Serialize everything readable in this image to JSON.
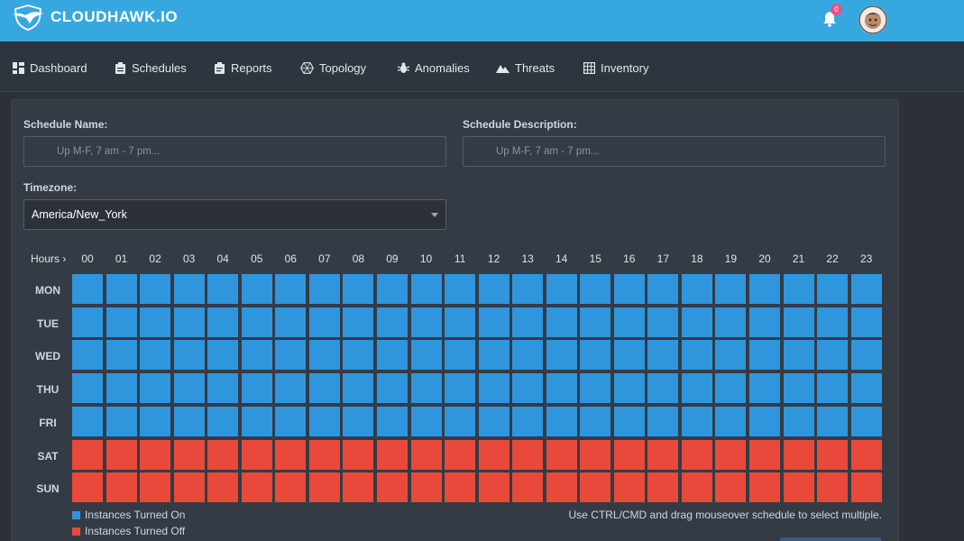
{
  "header": {
    "brand": "CLOUDHAWK.IO",
    "notification_count": "0",
    "logo_icon": "hawk-logo-icon",
    "bell_icon": "bell-icon"
  },
  "nav": {
    "items": [
      {
        "label": "Dashboard",
        "icon": "dashboard-icon"
      },
      {
        "label": "Schedules",
        "icon": "clipboard-icon"
      },
      {
        "label": "Reports",
        "icon": "report-icon"
      },
      {
        "label": "Topology",
        "icon": "topology-icon"
      },
      {
        "label": "Anomalies",
        "icon": "bug-icon"
      },
      {
        "label": "Threats",
        "icon": "mountain-icon"
      },
      {
        "label": "Inventory",
        "icon": "grid-icon"
      }
    ]
  },
  "form": {
    "schedule_name_label": "Schedule Name:",
    "schedule_name_placeholder": "Up M-F, 7 am - 7 pm...",
    "schedule_description_label": "Schedule Description:",
    "schedule_description_placeholder": "Up M-F, 7 am - 7 pm...",
    "timezone_label": "Timezone:",
    "timezone_value": "America/New_York"
  },
  "schedule": {
    "hours_label": "Hours ›",
    "hours": [
      "00",
      "01",
      "02",
      "03",
      "04",
      "05",
      "06",
      "07",
      "08",
      "09",
      "10",
      "11",
      "12",
      "13",
      "14",
      "15",
      "16",
      "17",
      "18",
      "19",
      "20",
      "21",
      "22",
      "23"
    ],
    "days": [
      {
        "label": "MON",
        "state": "on"
      },
      {
        "label": "TUE",
        "state": "on"
      },
      {
        "label": "WED",
        "state": "on"
      },
      {
        "label": "THU",
        "state": "on"
      },
      {
        "label": "FRI",
        "state": "on"
      },
      {
        "label": "SAT",
        "state": "off"
      },
      {
        "label": "SUN",
        "state": "off"
      }
    ],
    "legend_on": "Instances Turned On",
    "legend_off": "Instances Turned Off",
    "hint": "Use CTRL/CMD and drag mouseover schedule to select multiple.",
    "colors": {
      "on": "#2f96de",
      "off": "#e8493a"
    }
  }
}
